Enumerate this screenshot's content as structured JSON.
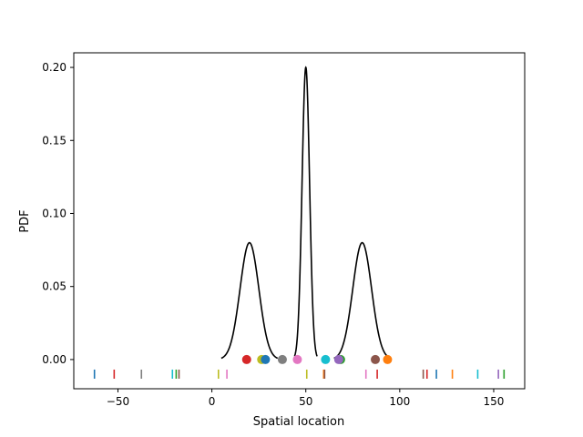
{
  "chart_data": {
    "type": "line",
    "title": "",
    "xlabel": "Spatial location",
    "ylabel": "PDF",
    "xlim": [
      -73.5,
      166.5
    ],
    "ylim": [
      -0.02,
      0.21
    ],
    "xticks": [
      -50,
      0,
      50,
      100,
      150
    ],
    "xtick_labels": [
      "−50",
      "0",
      "50",
      "100",
      "150"
    ],
    "yticks": [
      0.0,
      0.05,
      0.1,
      0.15,
      0.2
    ],
    "ytick_labels": [
      "0.00",
      "0.05",
      "0.10",
      "0.15",
      "0.20"
    ],
    "grid": false,
    "legend": "none",
    "curve": {
      "color": "#000000",
      "description_components": [
        {
          "mean": 20,
          "std": 5,
          "peak": 0.08,
          "range": [
            5,
            35
          ]
        },
        {
          "mean": 50,
          "std": 2,
          "peak": 0.2,
          "range": [
            44,
            56
          ]
        },
        {
          "mean": 80,
          "std": 5,
          "peak": 0.08,
          "range": [
            65,
            95
          ]
        }
      ]
    },
    "points": [
      {
        "x": 18.5,
        "y": 0,
        "color": "#d62728"
      },
      {
        "x": 26.5,
        "y": 0,
        "color": "#bcbd22"
      },
      {
        "x": 28.5,
        "y": 0,
        "color": "#1f77b4"
      },
      {
        "x": 37.5,
        "y": 0,
        "color": "#7f7f7f"
      },
      {
        "x": 45.5,
        "y": 0,
        "color": "#e377c2"
      },
      {
        "x": 60.5,
        "y": 0,
        "color": "#17becf"
      },
      {
        "x": 68.5,
        "y": 0,
        "color": "#2ca02c"
      },
      {
        "x": 67.5,
        "y": 0,
        "color": "#9467bd"
      },
      {
        "x": 87.0,
        "y": 0,
        "color": "#8c564b"
      },
      {
        "x": 93.5,
        "y": 0,
        "color": "#ff7f0e"
      }
    ],
    "rug": [
      {
        "x": -62.5,
        "color": "#1f77b4"
      },
      {
        "x": -52.0,
        "color": "#d62728"
      },
      {
        "x": -37.5,
        "color": "#7f7f7f"
      },
      {
        "x": -21.0,
        "color": "#17becf"
      },
      {
        "x": -19.0,
        "color": "#2ca02c"
      },
      {
        "x": -17.5,
        "color": "#8c564b"
      },
      {
        "x": 3.5,
        "color": "#bcbd22"
      },
      {
        "x": 8.0,
        "color": "#e377c2"
      },
      {
        "x": 50.5,
        "color": "#bcbd22"
      },
      {
        "x": 59.5,
        "color": "#ff7f0e"
      },
      {
        "x": 60.0,
        "color": "#8c564b"
      },
      {
        "x": 82.0,
        "color": "#e377c2"
      },
      {
        "x": 88.0,
        "color": "#d62728"
      },
      {
        "x": 112.5,
        "color": "#8c564b"
      },
      {
        "x": 114.5,
        "color": "#d62728"
      },
      {
        "x": 119.5,
        "color": "#1f77b4"
      },
      {
        "x": 128.0,
        "color": "#ff7f0e"
      },
      {
        "x": 141.5,
        "color": "#17becf"
      },
      {
        "x": 152.5,
        "color": "#9467bd"
      },
      {
        "x": 155.5,
        "color": "#2ca02c"
      }
    ],
    "rug_y": -0.01
  }
}
